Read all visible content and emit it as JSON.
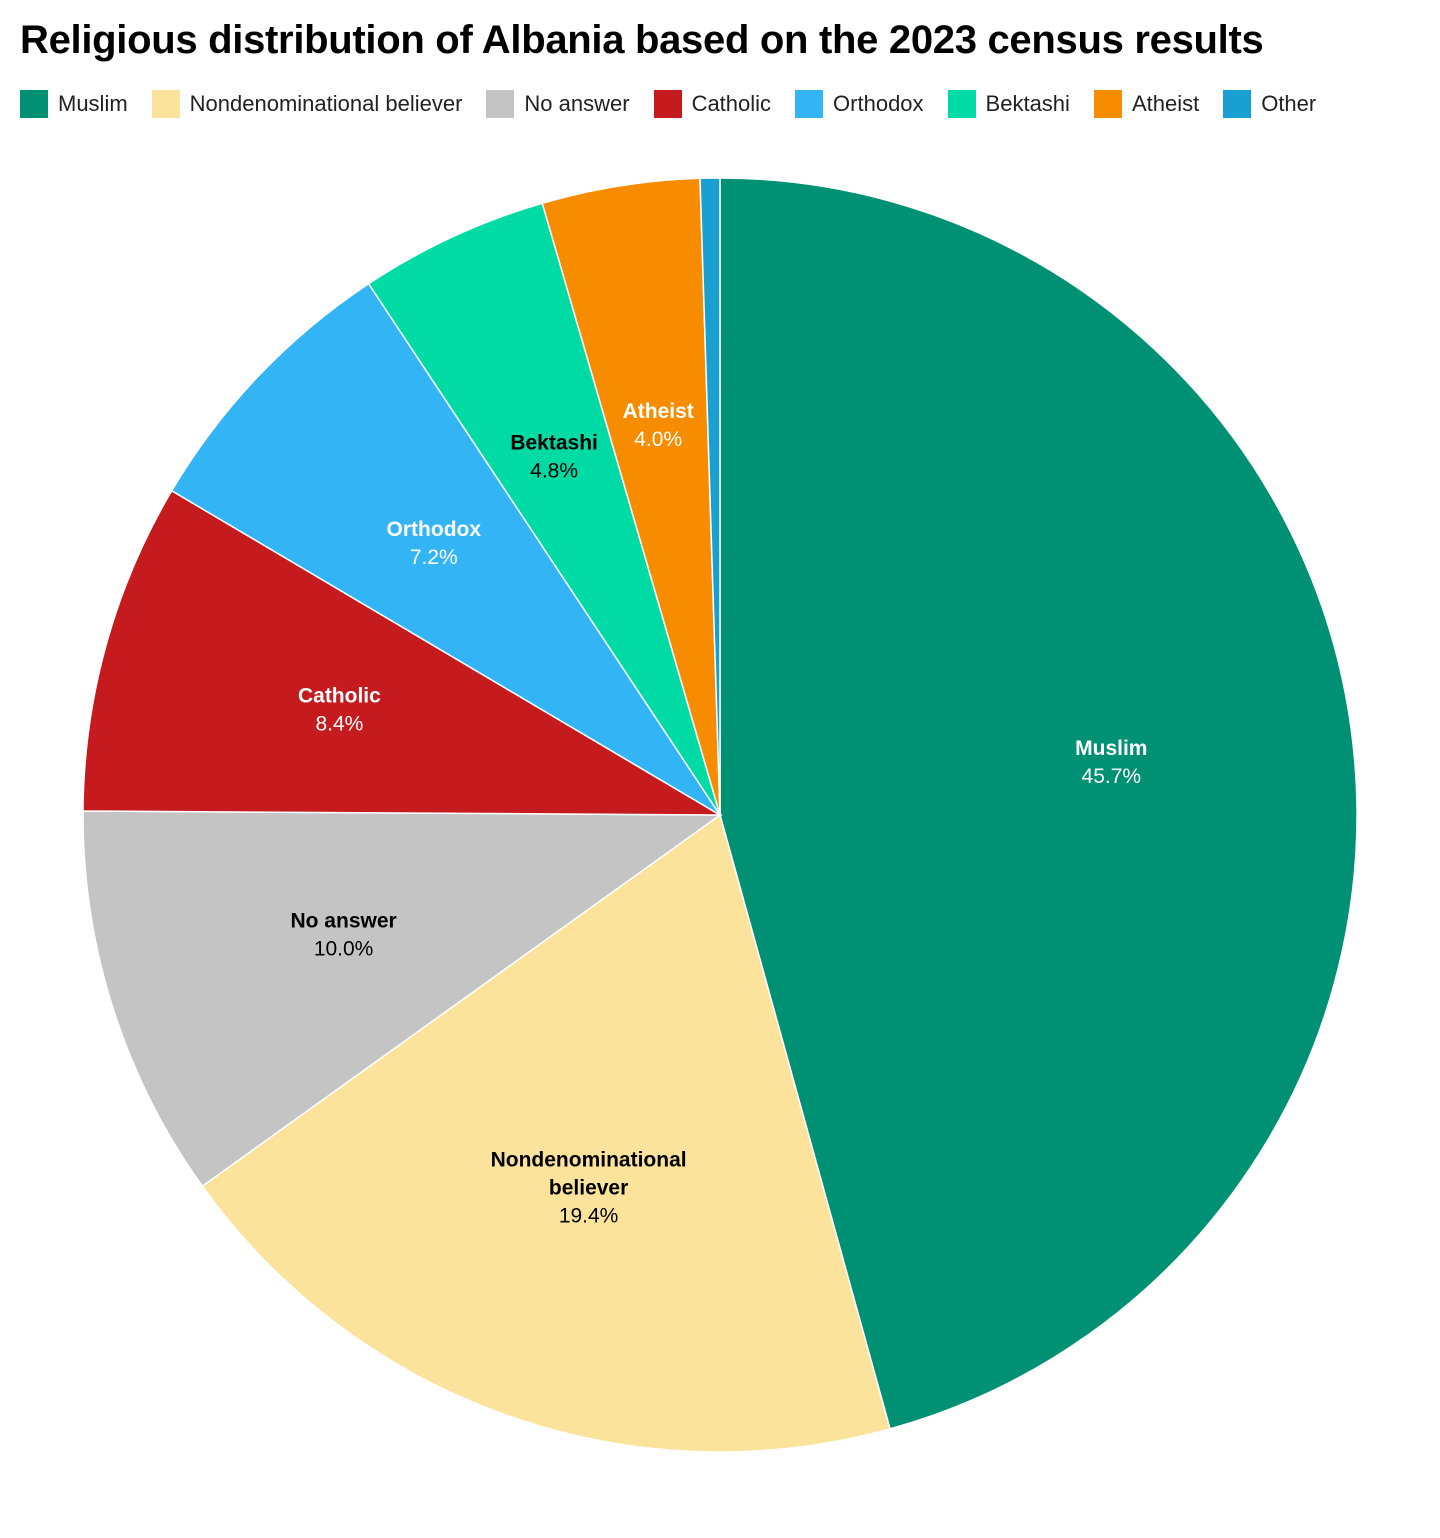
{
  "chart_data": {
    "type": "pie",
    "title": "Religious distribution of Albania based on the 2023 census results",
    "legend_position": "top",
    "slices": [
      {
        "label": "Muslim",
        "label_lines": [
          "Muslim"
        ],
        "value": 45.7,
        "value_label": "45.7%",
        "color": "#009174",
        "text_color": "#ffffff"
      },
      {
        "label": "Nondenominational believer",
        "label_lines": [
          "Nondenominational",
          "believer"
        ],
        "value": 19.4,
        "value_label": "19.4%",
        "color": "#fce39c",
        "text_color": "#000000"
      },
      {
        "label": "No answer",
        "label_lines": [
          "No answer"
        ],
        "value": 10.0,
        "value_label": "10.0%",
        "color": "#c4c4c4",
        "text_color": "#000000"
      },
      {
        "label": "Catholic",
        "label_lines": [
          "Catholic"
        ],
        "value": 8.4,
        "value_label": "8.4%",
        "color": "#c51b1e",
        "text_color": "#ffffff"
      },
      {
        "label": "Orthodox",
        "label_lines": [
          "Orthodox"
        ],
        "value": 7.2,
        "value_label": "7.2%",
        "color": "#33b5f5",
        "text_color": "#ffffff"
      },
      {
        "label": "Bektashi",
        "label_lines": [
          "Bektashi"
        ],
        "value": 4.8,
        "value_label": "4.8%",
        "color": "#00dba5",
        "text_color": "#000000"
      },
      {
        "label": "Atheist",
        "label_lines": [
          "Atheist"
        ],
        "value": 4.0,
        "value_label": "4.0%",
        "color": "#f78c00",
        "text_color": "#ffffff"
      },
      {
        "label": "Other",
        "label_lines": [],
        "value": 0.5,
        "value_label": "",
        "color": "#1aa0d0",
        "text_color": "#ffffff"
      }
    ]
  }
}
